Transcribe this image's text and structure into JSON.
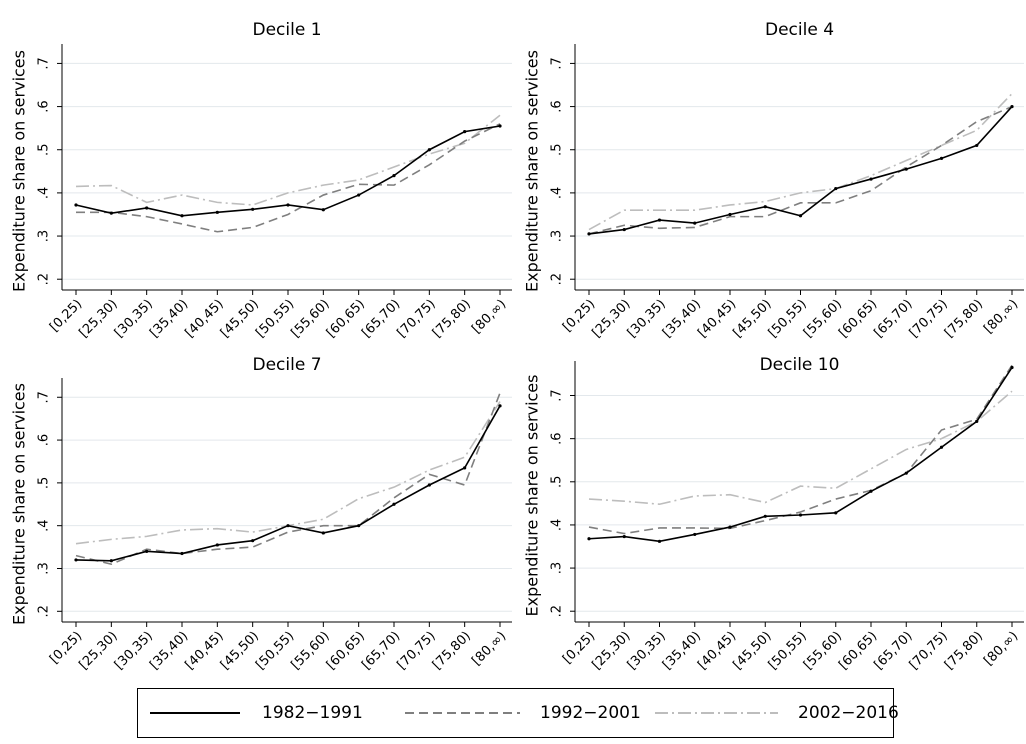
{
  "chart_data": [
    {
      "type": "line",
      "title": "Decile 1",
      "ylabel": "Expenditure share on services",
      "categories": [
        "[0,25)",
        "[25,30)",
        "[30,35)",
        "[35,40)",
        "[40,45)",
        "[45,50)",
        "[50,55)",
        "[55,60)",
        "[60,65)",
        "[65,70)",
        "[70,75)",
        "[75,80)",
        "[80,∞)"
      ],
      "ylim": [
        0.175,
        0.745
      ],
      "yticks": [
        {
          "value": 0.2,
          "label": ".2"
        },
        {
          "value": 0.3,
          "label": ".3"
        },
        {
          "value": 0.4,
          "label": ".4"
        },
        {
          "value": 0.5,
          "label": ".5"
        },
        {
          "value": 0.6,
          "label": ".6"
        },
        {
          "value": 0.7,
          "label": ".7"
        }
      ],
      "grid": true,
      "series": [
        {
          "name": "1982−1991",
          "color": "#000000",
          "dash": "solid",
          "marker": true,
          "values": [
            0.372,
            0.353,
            0.365,
            0.347,
            0.355,
            0.362,
            0.372,
            0.361,
            0.395,
            0.44,
            0.5,
            0.542,
            0.555
          ]
        },
        {
          "name": "1992−2001",
          "color": "#7f7f7f",
          "dash": "dashed",
          "values": [
            0.355,
            0.355,
            0.345,
            0.328,
            0.31,
            0.32,
            0.35,
            0.395,
            0.42,
            0.418,
            0.465,
            0.52,
            0.56
          ]
        },
        {
          "name": "2002−2016",
          "color": "#bdbdbd",
          "dash": "dashdot",
          "values": [
            0.415,
            0.417,
            0.378,
            0.395,
            0.378,
            0.372,
            0.4,
            0.418,
            0.43,
            0.46,
            0.49,
            0.515,
            0.58
          ]
        }
      ]
    },
    {
      "type": "line",
      "title": "Decile 4",
      "ylabel": "Expenditure share on services",
      "categories": [
        "[0,25)",
        "[25,30)",
        "[30,35)",
        "[35,40)",
        "[40,45)",
        "[45,50)",
        "[50,55)",
        "[55,60)",
        "[60,65)",
        "[65,70)",
        "[70,75)",
        "[75,80)",
        "[80,∞)"
      ],
      "ylim": [
        0.175,
        0.745
      ],
      "yticks": [
        {
          "value": 0.2,
          "label": ".2"
        },
        {
          "value": 0.3,
          "label": ".3"
        },
        {
          "value": 0.4,
          "label": ".4"
        },
        {
          "value": 0.5,
          "label": ".5"
        },
        {
          "value": 0.6,
          "label": ".6"
        },
        {
          "value": 0.7,
          "label": ".7"
        }
      ],
      "grid": true,
      "series": [
        {
          "color": "#000000",
          "dash": "solid",
          "marker": true,
          "values": [
            0.305,
            0.315,
            0.337,
            0.33,
            0.35,
            0.368,
            0.347,
            0.41,
            0.432,
            0.455,
            0.48,
            0.51,
            0.6
          ]
        },
        {
          "color": "#7f7f7f",
          "dash": "dashed",
          "values": [
            0.305,
            0.325,
            0.318,
            0.32,
            0.345,
            0.345,
            0.377,
            0.377,
            0.405,
            0.46,
            0.51,
            0.565,
            0.6
          ]
        },
        {
          "color": "#bdbdbd",
          "dash": "dashdot",
          "values": [
            0.315,
            0.36,
            0.36,
            0.36,
            0.372,
            0.38,
            0.4,
            0.41,
            0.44,
            0.475,
            0.51,
            0.545,
            0.63
          ]
        }
      ]
    },
    {
      "type": "line",
      "title": "Decile 7",
      "ylabel": "Expenditure share on services",
      "categories": [
        "[0,25)",
        "[25,30)",
        "[30,35)",
        "[35,40)",
        "[40,45)",
        "[45,50)",
        "[50,55)",
        "[55,60)",
        "[60,65)",
        "[65,70)",
        "[70,75)",
        "[75,80)",
        "[80,∞)"
      ],
      "ylim": [
        0.175,
        0.745
      ],
      "yticks": [
        {
          "value": 0.2,
          "label": ".2"
        },
        {
          "value": 0.3,
          "label": ".3"
        },
        {
          "value": 0.4,
          "label": ".4"
        },
        {
          "value": 0.5,
          "label": ".5"
        },
        {
          "value": 0.6,
          "label": ".6"
        },
        {
          "value": 0.7,
          "label": ".7"
        }
      ],
      "grid": true,
      "series": [
        {
          "color": "#000000",
          "dash": "solid",
          "marker": true,
          "values": [
            0.32,
            0.318,
            0.34,
            0.335,
            0.355,
            0.365,
            0.4,
            0.383,
            0.4,
            0.45,
            0.495,
            0.535,
            0.68
          ]
        },
        {
          "color": "#7f7f7f",
          "dash": "dashed",
          "values": [
            0.33,
            0.31,
            0.345,
            0.335,
            0.345,
            0.35,
            0.385,
            0.4,
            0.4,
            0.465,
            0.52,
            0.495,
            0.71
          ]
        },
        {
          "color": "#bdbdbd",
          "dash": "dashdot",
          "values": [
            0.358,
            0.368,
            0.375,
            0.39,
            0.393,
            0.385,
            0.4,
            0.415,
            0.463,
            0.49,
            0.53,
            0.56,
            0.69
          ]
        }
      ]
    },
    {
      "type": "line",
      "title": "Decile 10",
      "ylabel": "Expenditure share on services",
      "categories": [
        "[0,25)",
        "[25,30)",
        "[30,35)",
        "[35,40)",
        "[40,45)",
        "[45,50)",
        "[50,55)",
        "[55,60)",
        "[60,65)",
        "[65,70)",
        "[70,75)",
        "[75,80)",
        "[80,∞)"
      ],
      "ylim": [
        0.175,
        0.78
      ],
      "yticks": [
        {
          "value": 0.2,
          "label": ".2"
        },
        {
          "value": 0.3,
          "label": ".3"
        },
        {
          "value": 0.4,
          "label": ".4"
        },
        {
          "value": 0.5,
          "label": ".5"
        },
        {
          "value": 0.6,
          "label": ".6"
        },
        {
          "value": 0.7,
          "label": ".7"
        }
      ],
      "grid": true,
      "series": [
        {
          "color": "#000000",
          "dash": "solid",
          "marker": true,
          "values": [
            0.368,
            0.373,
            0.362,
            0.378,
            0.395,
            0.42,
            0.423,
            0.428,
            0.478,
            0.52,
            0.58,
            0.64,
            0.765
          ]
        },
        {
          "color": "#7f7f7f",
          "dash": "dashed",
          "values": [
            0.395,
            0.38,
            0.393,
            0.393,
            0.392,
            0.41,
            0.43,
            0.46,
            0.48,
            0.52,
            0.62,
            0.645,
            0.77
          ]
        },
        {
          "color": "#bdbdbd",
          "dash": "dashdot",
          "values": [
            0.46,
            0.455,
            0.448,
            0.467,
            0.47,
            0.452,
            0.49,
            0.485,
            0.53,
            0.575,
            0.6,
            0.64,
            0.71
          ]
        }
      ]
    }
  ]
}
